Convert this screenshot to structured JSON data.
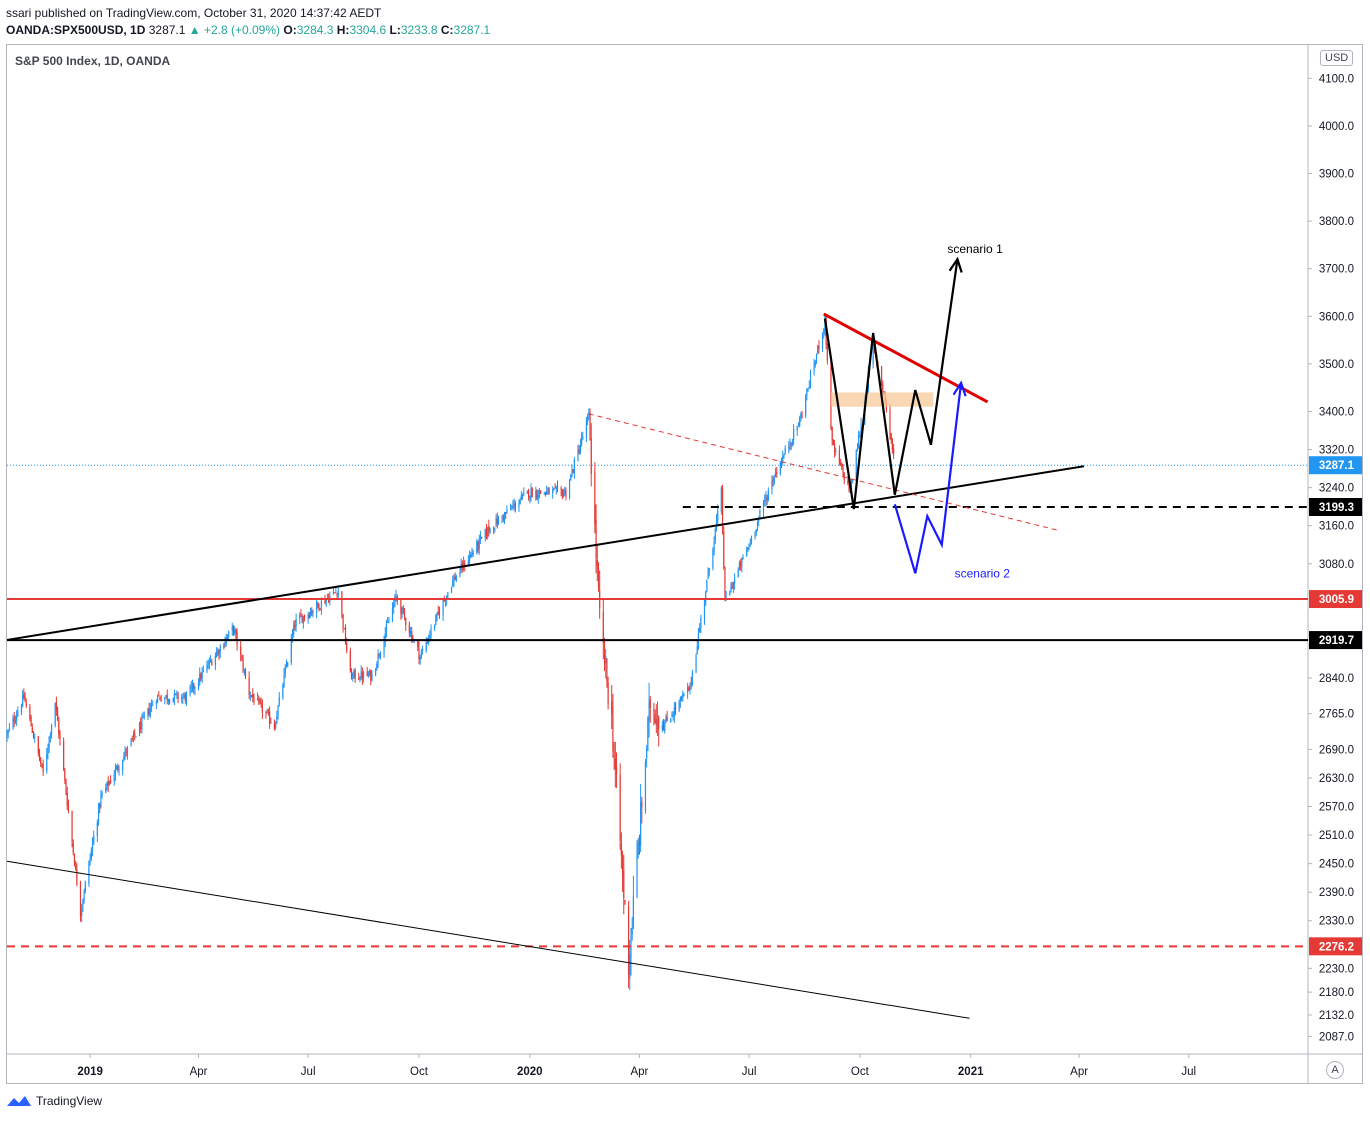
{
  "header": {
    "publisher": "ssari published on TradingView.com, October 31, 2020 14:37:42 AEDT",
    "symbol": "OANDA:SPX500USD, 1D",
    "last": "3287.1",
    "change": "▲ +2.8 (+0.09%)",
    "open_label": "O:",
    "open": "3284.3",
    "high_label": "H:",
    "high": "3304.6",
    "low_label": "L:",
    "low": "3233.8",
    "close_label": "C:",
    "close": "3287.1"
  },
  "pane_title": "S&P 500 Index, 1D, OANDA",
  "currency": "USD",
  "autoscale": "A",
  "footer": {
    "brand": "TradingView",
    "logo_icon": "tradingview-logo-icon"
  },
  "colors": {
    "up": "#26a69a",
    "down": "#ef5350",
    "candle_up": "#2196f3",
    "candle_down": "#e53935",
    "price": "#2196f3"
  },
  "chart_data": {
    "type": "candlestick",
    "title": "S&P 500 Index, 1D, OANDA",
    "ylim": [
      2050,
      4170
    ],
    "xlim": [
      "2018-10-24",
      "2021-10-08"
    ],
    "y_ticks": [
      "4100.0",
      "4000.0",
      "3900.0",
      "3800.0",
      "3700.0",
      "3600.0",
      "3500.0",
      "3400.0",
      "3320.0",
      "3240.0",
      "3160.0",
      "3080.0",
      "2840.0",
      "2765.0",
      "2690.0",
      "2630.0",
      "2570.0",
      "2510.0",
      "2450.0",
      "2390.0",
      "2330.0",
      "2230.0",
      "2180.0",
      "2132.0",
      "2087.0"
    ],
    "x_ticks": [
      {
        "label": "2019",
        "date": "2019-01-01",
        "bold": true
      },
      {
        "label": "Apr",
        "date": "2019-04-01",
        "bold": false
      },
      {
        "label": "Jul",
        "date": "2019-07-01",
        "bold": false
      },
      {
        "label": "Oct",
        "date": "2019-10-01",
        "bold": false
      },
      {
        "label": "2020",
        "date": "2020-01-01",
        "bold": true
      },
      {
        "label": "Apr",
        "date": "2020-04-01",
        "bold": false
      },
      {
        "label": "Jul",
        "date": "2020-07-01",
        "bold": false
      },
      {
        "label": "Oct",
        "date": "2020-10-01",
        "bold": false
      },
      {
        "label": "2021",
        "date": "2021-01-01",
        "bold": true
      },
      {
        "label": "Apr",
        "date": "2021-04-01",
        "bold": false
      },
      {
        "label": "Jul",
        "date": "2021-07-01",
        "bold": false
      }
    ],
    "price_path": [
      [
        "2018-10-24",
        2720
      ],
      [
        "2018-11-07",
        2800
      ],
      [
        "2018-11-23",
        2640
      ],
      [
        "2018-12-03",
        2790
      ],
      [
        "2018-12-24",
        2350
      ],
      [
        "2019-01-10",
        2590
      ],
      [
        "2019-02-25",
        2800
      ],
      [
        "2019-03-22",
        2800
      ],
      [
        "2019-04-30",
        2945
      ],
      [
        "2019-05-13",
        2810
      ],
      [
        "2019-06-03",
        2740
      ],
      [
        "2019-06-20",
        2955
      ],
      [
        "2019-07-26",
        3025
      ],
      [
        "2019-08-05",
        2845
      ],
      [
        "2019-08-23",
        2845
      ],
      [
        "2019-09-12",
        3010
      ],
      [
        "2019-10-02",
        2885
      ],
      [
        "2019-10-28",
        3040
      ],
      [
        "2019-11-27",
        3150
      ],
      [
        "2019-12-31",
        3230
      ],
      [
        "2020-01-31",
        3230
      ],
      [
        "2020-02-19",
        3390
      ],
      [
        "2020-02-28",
        2960
      ],
      [
        "2020-03-09",
        2750
      ],
      [
        "2020-03-23",
        2240
      ],
      [
        "2020-04-10",
        2790
      ],
      [
        "2020-04-21",
        2740
      ],
      [
        "2020-05-13",
        2820
      ],
      [
        "2020-06-08",
        3230
      ],
      [
        "2020-06-11",
        3000
      ],
      [
        "2020-07-01",
        3120
      ],
      [
        "2020-07-21",
        3260
      ],
      [
        "2020-08-12",
        3380
      ],
      [
        "2020-09-02",
        3590
      ],
      [
        "2020-09-08",
        3330
      ],
      [
        "2020-09-23",
        3230
      ],
      [
        "2020-10-12",
        3540
      ],
      [
        "2020-10-21",
        3440
      ],
      [
        "2020-10-30",
        3287.1
      ]
    ],
    "price_line": {
      "value": "3287.1",
      "label": "3287.1"
    },
    "horizontal_levels": [
      {
        "value": "3199.3",
        "label": "3199.3",
        "style": "dashed-black"
      },
      {
        "value": "3005.9",
        "label": "3005.9",
        "style": "solid-red"
      },
      {
        "value": "2919.7",
        "label": "2919.7",
        "style": "solid-black"
      },
      {
        "value": "2276.2",
        "label": "2276.2",
        "style": "dashed-red"
      }
    ],
    "trendlines": [
      {
        "name": "rising-support",
        "from": [
          "2018-10-24",
          2920
        ],
        "to": [
          "2021-04-05",
          3285
        ],
        "color": "#000000",
        "width": 2
      },
      {
        "name": "lower-channel",
        "from": [
          "2018-10-24",
          2455
        ],
        "to": [
          "2020-12-31",
          2125
        ],
        "color": "#000000",
        "width": 1
      },
      {
        "name": "red-resistance",
        "from": [
          "2020-09-01",
          3605
        ],
        "to": [
          "2021-01-15",
          3420
        ],
        "color": "#e00000",
        "width": 3
      },
      {
        "name": "red-dashed-channel",
        "from": [
          "2020-02-19",
          3395
        ],
        "to": [
          "2021-03-15",
          3150
        ],
        "color": "#e53935",
        "width": 1,
        "dashed": true
      }
    ],
    "zone": {
      "from": "2020-09-07",
      "to": "2020-12-01",
      "low": 3410,
      "high": 3440,
      "color": "#f8c99a"
    },
    "scenario_1": {
      "label": "scenario 1",
      "label_at": [
        "2020-12-06",
        3720
      ],
      "path": [
        [
          "2020-09-02",
          3595
        ],
        [
          "2020-09-26",
          3195
        ],
        [
          "2020-10-12",
          3565
        ],
        [
          "2020-10-30",
          3225
        ],
        [
          "2020-11-16",
          3445
        ],
        [
          "2020-11-29",
          3330
        ],
        [
          "2020-12-21",
          3720
        ]
      ]
    },
    "scenario_2": {
      "label": "scenario 2",
      "label_at": [
        "2020-12-12",
        3060
      ],
      "path": [
        [
          "2020-10-30",
          3205
        ],
        [
          "2020-11-16",
          3060
        ],
        [
          "2020-11-26",
          3180
        ],
        [
          "2020-12-08",
          3120
        ],
        [
          "2020-12-24",
          3460
        ]
      ]
    }
  }
}
